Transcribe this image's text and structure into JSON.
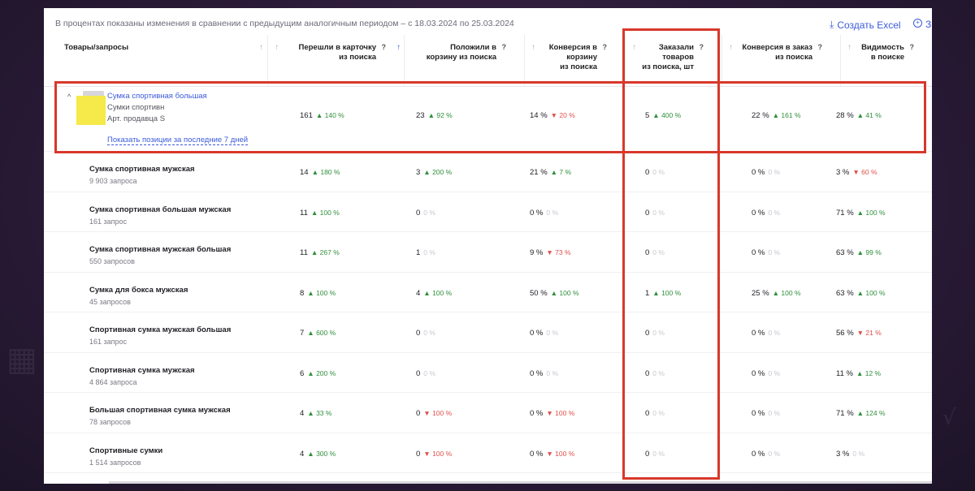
{
  "note": "В процентах показаны изменения в сравнении с предыдущим аналогичным периодом – с 18.03.2024 по 25.03.2024",
  "toolbar": {
    "excel_label": "Создать Excel",
    "extra_label": "З"
  },
  "columns": [
    {
      "label": "Товары/запросы"
    },
    {
      "label1": "Перешли в карточку",
      "label2": "из поиска",
      "help": "?"
    },
    {
      "label1": "Положили в",
      "label2": "корзину из поиска",
      "help": "?"
    },
    {
      "label1": "Конверсия в корзину",
      "label2": "из поиска",
      "help": "?"
    },
    {
      "label1": "Заказали товаров",
      "label2": "из поиска, шт",
      "help": "?"
    },
    {
      "label1": "Конверсия в заказ",
      "label2": "из поиска",
      "help": "?"
    },
    {
      "label1": "Видимость",
      "label2": "в поиске",
      "help": "?"
    }
  ],
  "product": {
    "name": "Сумка спортивная большая",
    "category": "Сумки спортивн",
    "article": "Арт. продавца S",
    "link": "Показать позиции за последние 7 дней",
    "values": [
      {
        "v": "161",
        "c": "140 %",
        "d": "up"
      },
      {
        "v": "23",
        "c": "92 %",
        "d": "up"
      },
      {
        "v": "14 %",
        "c": "20 %",
        "d": "down"
      },
      {
        "v": "5",
        "c": "400 %",
        "d": "up"
      },
      {
        "v": "22 %",
        "c": "161 %",
        "d": "up"
      },
      {
        "v": "28 %",
        "c": "41 %",
        "d": "up"
      }
    ]
  },
  "rows": [
    {
      "name": "Сумка спортивная мужская",
      "sub": "9 903 запроса",
      "values": [
        {
          "v": "14",
          "c": "180 %",
          "d": "up"
        },
        {
          "v": "3",
          "c": "200 %",
          "d": "up"
        },
        {
          "v": "21 %",
          "c": "7 %",
          "d": "up"
        },
        {
          "v": "0",
          "c": "0 %",
          "d": "zero"
        },
        {
          "v": "0 %",
          "c": "0 %",
          "d": "zero"
        },
        {
          "v": "3 %",
          "c": "60 %",
          "d": "down"
        }
      ]
    },
    {
      "name": "Сумка спортивная большая мужская",
      "sub": "161 запрос",
      "values": [
        {
          "v": "11",
          "c": "100 %",
          "d": "up"
        },
        {
          "v": "0",
          "c": "0 %",
          "d": "zero"
        },
        {
          "v": "0 %",
          "c": "0 %",
          "d": "zero"
        },
        {
          "v": "0",
          "c": "0 %",
          "d": "zero"
        },
        {
          "v": "0 %",
          "c": "0 %",
          "d": "zero"
        },
        {
          "v": "71 %",
          "c": "100 %",
          "d": "up"
        }
      ]
    },
    {
      "name": "Сумка спортивная мужская большая",
      "sub": "550 запросов",
      "values": [
        {
          "v": "11",
          "c": "267 %",
          "d": "up"
        },
        {
          "v": "1",
          "c": "0 %",
          "d": "zero"
        },
        {
          "v": "9 %",
          "c": "73 %",
          "d": "down"
        },
        {
          "v": "0",
          "c": "0 %",
          "d": "zero"
        },
        {
          "v": "0 %",
          "c": "0 %",
          "d": "zero"
        },
        {
          "v": "63 %",
          "c": "99 %",
          "d": "up"
        }
      ]
    },
    {
      "name": "Сумка для бокса мужская",
      "sub": "45 запросов",
      "values": [
        {
          "v": "8",
          "c": "100 %",
          "d": "up"
        },
        {
          "v": "4",
          "c": "100 %",
          "d": "up"
        },
        {
          "v": "50 %",
          "c": "100 %",
          "d": "up"
        },
        {
          "v": "1",
          "c": "100 %",
          "d": "up"
        },
        {
          "v": "25 %",
          "c": "100 %",
          "d": "up"
        },
        {
          "v": "63 %",
          "c": "100 %",
          "d": "up"
        }
      ]
    },
    {
      "name": "Спортивная сумка мужская большая",
      "sub": "161 запрос",
      "values": [
        {
          "v": "7",
          "c": "600 %",
          "d": "up"
        },
        {
          "v": "0",
          "c": "0 %",
          "d": "zero"
        },
        {
          "v": "0 %",
          "c": "0 %",
          "d": "zero"
        },
        {
          "v": "0",
          "c": "0 %",
          "d": "zero"
        },
        {
          "v": "0 %",
          "c": "0 %",
          "d": "zero"
        },
        {
          "v": "56 %",
          "c": "21 %",
          "d": "down"
        }
      ]
    },
    {
      "name": "Спортивная сумка мужская",
      "sub": "4 864 запроса",
      "values": [
        {
          "v": "6",
          "c": "200 %",
          "d": "up"
        },
        {
          "v": "0",
          "c": "0 %",
          "d": "zero"
        },
        {
          "v": "0 %",
          "c": "0 %",
          "d": "zero"
        },
        {
          "v": "0",
          "c": "0 %",
          "d": "zero"
        },
        {
          "v": "0 %",
          "c": "0 %",
          "d": "zero"
        },
        {
          "v": "11 %",
          "c": "12 %",
          "d": "up"
        }
      ]
    },
    {
      "name": "Большая спортивная сумка мужская",
      "sub": "78 запросов",
      "values": [
        {
          "v": "4",
          "c": "33 %",
          "d": "up"
        },
        {
          "v": "0",
          "c": "100 %",
          "d": "down"
        },
        {
          "v": "0 %",
          "c": "100 %",
          "d": "down"
        },
        {
          "v": "0",
          "c": "0 %",
          "d": "zero"
        },
        {
          "v": "0 %",
          "c": "0 %",
          "d": "zero"
        },
        {
          "v": "71 %",
          "c": "124 %",
          "d": "up"
        }
      ]
    },
    {
      "name": "Спортивные сумки",
      "sub": "1 514 запросов",
      "values": [
        {
          "v": "4",
          "c": "300 %",
          "d": "up"
        },
        {
          "v": "0",
          "c": "100 %",
          "d": "down"
        },
        {
          "v": "0 %",
          "c": "100 %",
          "d": "down"
        },
        {
          "v": "0",
          "c": "0 %",
          "d": "zero"
        },
        {
          "v": "0 %",
          "c": "0 %",
          "d": "zero"
        },
        {
          "v": "3 %",
          "c": "0 %",
          "d": "zero"
        }
      ]
    }
  ],
  "colors": {
    "accent": "#3b5bdb",
    "up": "#2f8f3a",
    "down": "#e0504a",
    "highlight": "#d8382b"
  }
}
